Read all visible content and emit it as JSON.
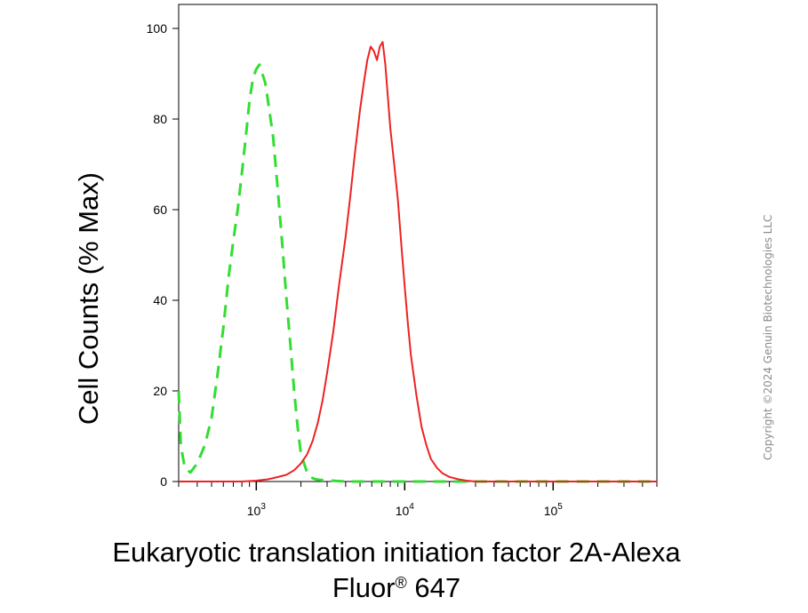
{
  "chart_data": {
    "type": "line",
    "title": "",
    "xlabel_line1": "Eukaryotic translation initiation factor 2A-Alexa",
    "xlabel_line2_text": "Fluor",
    "xlabel_line2_sup": "®",
    "xlabel_line2_tail": " 647",
    "ylabel": "Cell Counts (% Max)",
    "x_scale": "log",
    "xlim": [
      300,
      500000
    ],
    "ylim": [
      0,
      100
    ],
    "yticks": [
      {
        "value": 0,
        "label": "0"
      },
      {
        "value": 20,
        "label": "20"
      },
      {
        "value": 40,
        "label": "40"
      },
      {
        "value": 60,
        "label": "60"
      },
      {
        "value": 80,
        "label": "80"
      },
      {
        "value": 100,
        "label": "100"
      }
    ],
    "xticks": [
      {
        "value": 1000,
        "base": "10",
        "exp": "3"
      },
      {
        "value": 10000,
        "base": "10",
        "exp": "4"
      },
      {
        "value": 100000,
        "base": "10",
        "exp": "5"
      }
    ],
    "grid": false,
    "legend": "none",
    "series": [
      {
        "color": "#33dd33",
        "style": "dashed",
        "x": [
          300,
          310,
          330,
          360,
          400,
          450,
          500,
          550,
          600,
          650,
          700,
          750,
          800,
          850,
          900,
          950,
          1000,
          1050,
          1100,
          1150,
          1200,
          1300,
          1400,
          1500,
          1600,
          1700,
          1800,
          1900,
          2000,
          2100,
          2200,
          2300,
          2500,
          2800,
          3200,
          4000,
          6000,
          10000,
          20000,
          50000,
          100000,
          500000
        ],
        "y": [
          20,
          8,
          3,
          2,
          4,
          8,
          14,
          24,
          34,
          45,
          53,
          60,
          68,
          76,
          84,
          89,
          91,
          92,
          90,
          88,
          84,
          76,
          64,
          52,
          40,
          30,
          20,
          12,
          6,
          4,
          2,
          1,
          0.5,
          0.3,
          0.2,
          0,
          0,
          0,
          0,
          0,
          0,
          0
        ]
      },
      {
        "color": "#ee2222",
        "style": "solid",
        "x": [
          300,
          800,
          1000,
          1200,
          1400,
          1600,
          1800,
          2000,
          2200,
          2400,
          2600,
          2800,
          3000,
          3300,
          3600,
          4000,
          4300,
          4600,
          5000,
          5300,
          5600,
          5900,
          6200,
          6500,
          6800,
          7100,
          7400,
          7700,
          8000,
          8500,
          9000,
          9500,
          10000,
          10500,
          11000,
          12000,
          13000,
          14000,
          15000,
          16500,
          18000,
          20000,
          23000,
          26000,
          30000,
          40000,
          100000,
          500000
        ],
        "y": [
          0,
          0,
          0.2,
          0.5,
          1,
          1.5,
          2.5,
          4,
          6,
          9,
          13,
          18,
          24,
          33,
          43,
          54,
          63,
          72,
          82,
          88,
          93,
          96,
          95,
          93,
          96,
          97,
          92,
          85,
          78,
          70,
          62,
          52,
          43,
          35,
          28,
          19,
          12,
          8,
          5,
          3,
          1.8,
          1,
          0.5,
          0.2,
          0,
          0,
          0,
          0
        ]
      }
    ]
  },
  "copyright": "Copyright ©2024 Genuin Biotechnologies LLC"
}
